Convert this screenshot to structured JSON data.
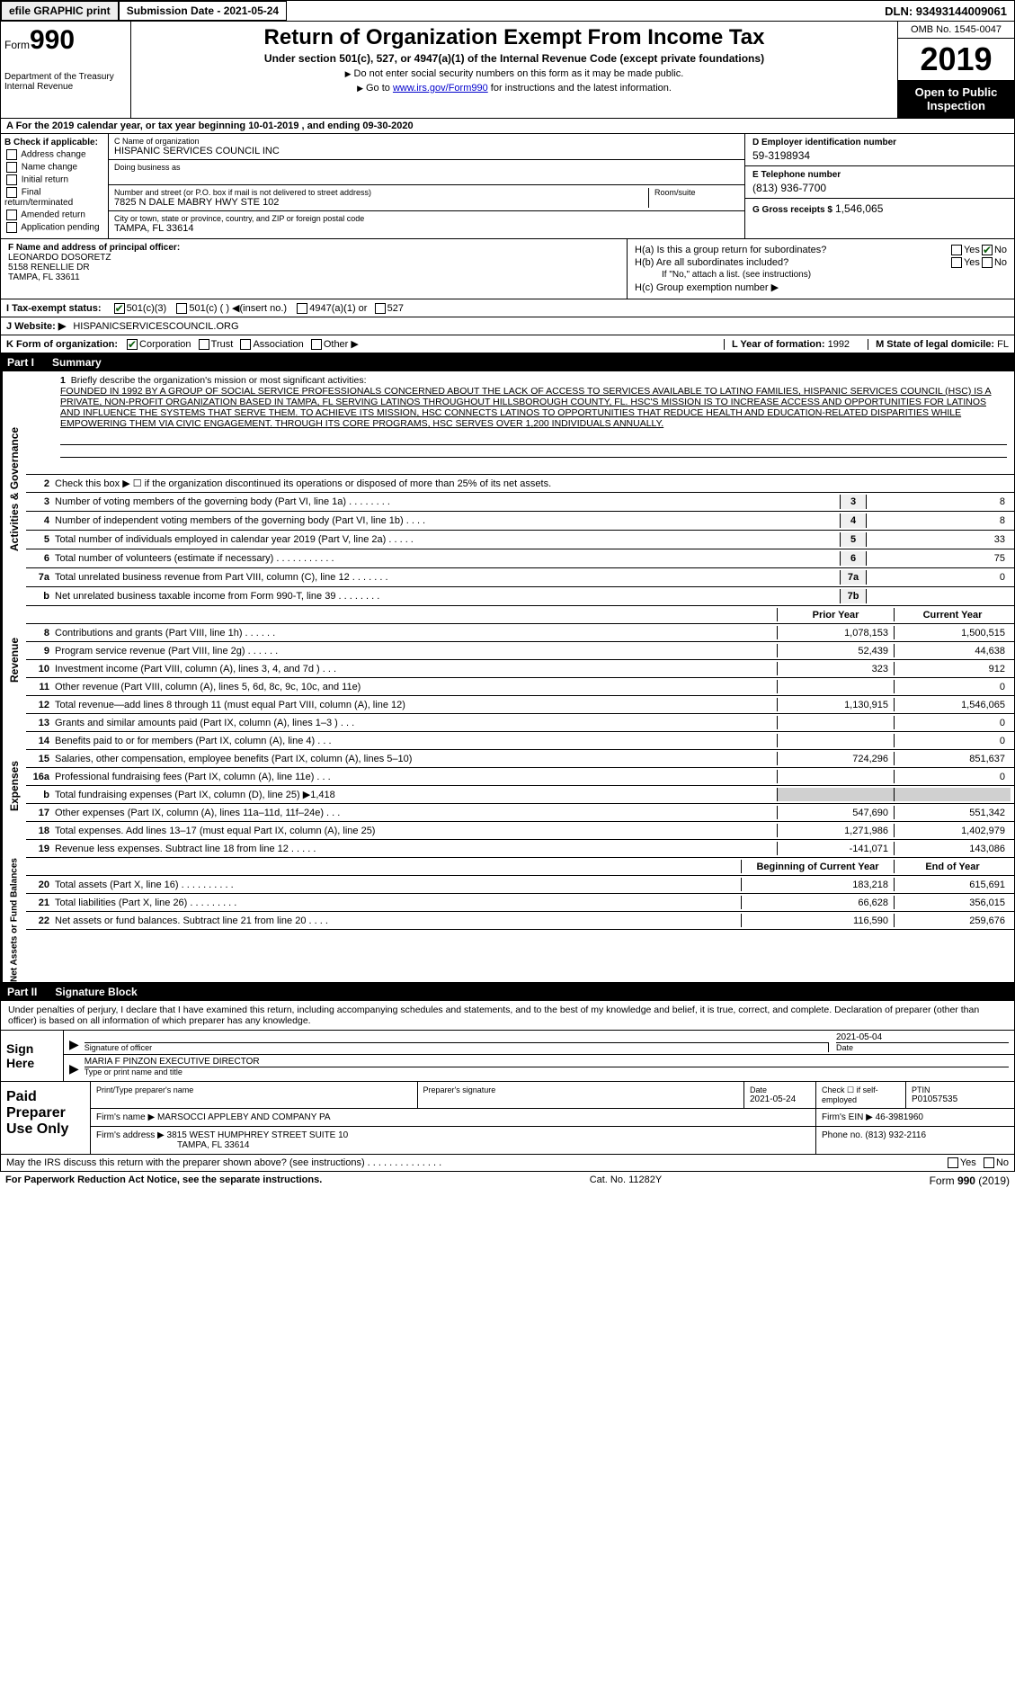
{
  "topbar": {
    "efile": "efile GRAPHIC print",
    "submission": "Submission Date - 2021-05-24",
    "dln": "DLN: 93493144009061"
  },
  "header": {
    "form_word": "Form",
    "form_num": "990",
    "dept": "Department of the Treasury\nInternal Revenue",
    "title": "Return of Organization Exempt From Income Tax",
    "sub1": "Under section 501(c), 527, or 4947(a)(1) of the Internal Revenue Code (except private foundations)",
    "sub2a": "Do not enter social security numbers on this form as it may be made public.",
    "sub2b_pre": "Go to ",
    "sub2b_link": "www.irs.gov/Form990",
    "sub2b_post": " for instructions and the latest information.",
    "omb": "OMB No. 1545-0047",
    "year": "2019",
    "openpub": "Open to Public Inspection"
  },
  "row_a": "A  For the 2019 calendar year, or tax year beginning 10-01-2019    , and ending 09-30-2020",
  "col_b": {
    "hdr": "B Check if applicable:",
    "items": [
      "Address change",
      "Name change",
      "Initial return",
      "Final return/terminated",
      "Amended return",
      "Application pending"
    ]
  },
  "col_c": {
    "name_lbl": "C Name of organization",
    "name": "HISPANIC SERVICES COUNCIL INC",
    "dba_lbl": "Doing business as",
    "dba": "",
    "street_lbl": "Number and street (or P.O. box if mail is not delivered to street address)",
    "street": "7825 N DALE MABRY HWY STE 102",
    "room_lbl": "Room/suite",
    "city_lbl": "City or town, state or province, country, and ZIP or foreign postal code",
    "city": "TAMPA, FL  33614"
  },
  "col_d": {
    "ein_lbl": "D Employer identification number",
    "ein": "59-3198934",
    "tel_lbl": "E Telephone number",
    "tel": "(813) 936-7700",
    "gross_lbl": "G Gross receipts $",
    "gross": "1,546,065"
  },
  "f": {
    "lbl": "F  Name and address of principal officer:",
    "name": "LEONARDO DOSORETZ",
    "addr1": "5158 RENELLIE DR",
    "addr2": "TAMPA, FL  33611"
  },
  "h": {
    "a": "H(a)  Is this a group return for subordinates?",
    "b": "H(b)  Are all subordinates included?",
    "b_note": "If \"No,\" attach a list. (see instructions)",
    "c": "H(c)  Group exemption number ▶"
  },
  "i": {
    "lbl": "I    Tax-exempt status:",
    "opts": [
      "501(c)(3)",
      "501(c) (   ) ◀(insert no.)",
      "4947(a)(1) or",
      "527"
    ]
  },
  "j": {
    "lbl": "J   Website: ▶",
    "val": "HISPANICSERVICESCOUNCIL.ORG"
  },
  "k": {
    "lbl": "K Form of organization:",
    "opts": [
      "Corporation",
      "Trust",
      "Association",
      "Other ▶"
    ],
    "l_lbl": "L Year of formation:",
    "l_val": "1992",
    "m_lbl": "M State of legal domicile:",
    "m_val": "FL"
  },
  "part1": {
    "num": "Part I",
    "title": "Summary"
  },
  "mission": {
    "num": "1",
    "lbl": "Briefly describe the organization's mission or most significant activities:",
    "txt": "FOUNDED IN 1992 BY A GROUP OF SOCIAL SERVICE PROFESSIONALS CONCERNED ABOUT THE LACK OF ACCESS TO SERVICES AVAILABLE TO LATINO FAMILIES, HISPANIC SERVICES COUNCIL (HSC) IS A PRIVATE, NON-PROFIT ORGANIZATION BASED IN TAMPA, FL SERVING LATINOS THROUGHOUT HILLSBOROUGH COUNTY, FL. HSC'S MISSION IS TO INCREASE ACCESS AND OPPORTUNITIES FOR LATINOS AND INFLUENCE THE SYSTEMS THAT SERVE THEM. TO ACHIEVE ITS MISSION, HSC CONNECTS LATINOS TO OPPORTUNITIES THAT REDUCE HEALTH AND EDUCATION-RELATED DISPARITIES WHILE EMPOWERING THEM VIA CIVIC ENGAGEMENT. THROUGH ITS CORE PROGRAMS, HSC SERVES OVER 1,200 INDIVIDUALS ANNUALLY."
  },
  "sidebars": {
    "s1": "Activities & Governance",
    "s2": "Revenue",
    "s3": "Expenses",
    "s4": "Net Assets or Fund Balances"
  },
  "lines_gov": [
    {
      "n": "2",
      "d": "Check this box ▶ ☐ if the organization discontinued its operations or disposed of more than 25% of its net assets."
    },
    {
      "n": "3",
      "d": "Number of voting members of the governing body (Part VI, line 1a)   .    .    .    .    .    .    .    .",
      "box": "3",
      "v": "8"
    },
    {
      "n": "4",
      "d": "Number of independent voting members of the governing body (Part VI, line 1b)    .    .    .    .",
      "box": "4",
      "v": "8"
    },
    {
      "n": "5",
      "d": "Total number of individuals employed in calendar year 2019 (Part V, line 2a)   .    .    .    .    .",
      "box": "5",
      "v": "33"
    },
    {
      "n": "6",
      "d": "Total number of volunteers (estimate if necessary)    .    .    .    .    .    .    .    .    .    .    .",
      "box": "6",
      "v": "75"
    },
    {
      "n": "7a",
      "d": "Total unrelated business revenue from Part VIII, column (C), line 12    .    .    .    .    .    .    .",
      "box": "7a",
      "v": "0"
    },
    {
      "n": "b",
      "d": "Net unrelated business taxable income from Form 990-T, line 39    .    .    .    .    .    .    .    .",
      "box": "7b",
      "v": ""
    }
  ],
  "col_hdrs": {
    "py": "Prior Year",
    "cy": "Current Year"
  },
  "lines_rev": [
    {
      "n": "8",
      "d": "Contributions and grants (Part VIII, line 1h)    .    .    .    .    .    .",
      "v1": "1,078,153",
      "v2": "1,500,515"
    },
    {
      "n": "9",
      "d": "Program service revenue (Part VIII, line 2g)    .    .    .    .    .    .",
      "v1": "52,439",
      "v2": "44,638"
    },
    {
      "n": "10",
      "d": "Investment income (Part VIII, column (A), lines 3, 4, and 7d )    .    .    .",
      "v1": "323",
      "v2": "912"
    },
    {
      "n": "11",
      "d": "Other revenue (Part VIII, column (A), lines 5, 6d, 8c, 9c, 10c, and 11e)",
      "v1": "",
      "v2": "0"
    },
    {
      "n": "12",
      "d": "Total revenue—add lines 8 through 11 (must equal Part VIII, column (A), line 12)",
      "v1": "1,130,915",
      "v2": "1,546,065"
    }
  ],
  "lines_exp": [
    {
      "n": "13",
      "d": "Grants and similar amounts paid (Part IX, column (A), lines 1–3 )    .    .    .",
      "v1": "",
      "v2": "0"
    },
    {
      "n": "14",
      "d": "Benefits paid to or for members (Part IX, column (A), line 4)    .    .    .",
      "v1": "",
      "v2": "0"
    },
    {
      "n": "15",
      "d": "Salaries, other compensation, employee benefits (Part IX, column (A), lines 5–10)",
      "v1": "724,296",
      "v2": "851,637"
    },
    {
      "n": "16a",
      "d": "Professional fundraising fees (Part IX, column (A), line 11e)    .    .    .",
      "v1": "",
      "v2": "0"
    },
    {
      "n": "b",
      "d": "Total fundraising expenses (Part IX, column (D), line 25) ▶1,418",
      "v1": "gray",
      "v2": "gray"
    },
    {
      "n": "17",
      "d": "Other expenses (Part IX, column (A), lines 11a–11d, 11f–24e)    .    .    .",
      "v1": "547,690",
      "v2": "551,342"
    },
    {
      "n": "18",
      "d": "Total expenses. Add lines 13–17 (must equal Part IX, column (A), line 25)",
      "v1": "1,271,986",
      "v2": "1,402,979"
    },
    {
      "n": "19",
      "d": "Revenue less expenses. Subtract line 18 from line 12    .    .    .    .    .",
      "v1": "-141,071",
      "v2": "143,086"
    }
  ],
  "col_hdrs2": {
    "py": "Beginning of Current Year",
    "cy": "End of Year"
  },
  "lines_net": [
    {
      "n": "20",
      "d": "Total assets (Part X, line 16)    .    .    .    .    .    .    .    .    .    .",
      "v1": "183,218",
      "v2": "615,691"
    },
    {
      "n": "21",
      "d": "Total liabilities (Part X, line 26)    .    .    .    .    .    .    .    .    .",
      "v1": "66,628",
      "v2": "356,015"
    },
    {
      "n": "22",
      "d": "Net assets or fund balances. Subtract line 21 from line 20    .    .    .    .",
      "v1": "116,590",
      "v2": "259,676"
    }
  ],
  "part2": {
    "num": "Part II",
    "title": "Signature Block"
  },
  "sig": {
    "intro": "Under penalties of perjury, I declare that I have examined this return, including accompanying schedules and statements, and to the best of my knowledge and belief, it is true, correct, and complete. Declaration of preparer (other than officer) is based on all information of which preparer has any knowledge.",
    "here": "Sign Here",
    "sig_lbl": "Signature of officer",
    "date": "2021-05-04",
    "date_lbl": "Date",
    "name": "MARIA F PINZON  EXECUTIVE DIRECTOR",
    "name_lbl": "Type or print name and title"
  },
  "prep": {
    "title": "Paid Preparer Use Only",
    "h1": "Print/Type preparer's name",
    "h2": "Preparer's signature",
    "h3": "Date",
    "h3v": "2021-05-24",
    "h4": "Check ☐ if self-employed",
    "h5": "PTIN",
    "h5v": "P01057535",
    "firm_lbl": "Firm's name      ▶",
    "firm": "MARSOCCI APPLEBY AND COMPANY PA",
    "ein_lbl": "Firm's EIN ▶",
    "ein": "46-3981960",
    "addr_lbl": "Firm's address ▶",
    "addr1": "3815 WEST HUMPHREY STREET SUITE 10",
    "addr2": "TAMPA, FL  33614",
    "phone_lbl": "Phone no.",
    "phone": "(813) 932-2116"
  },
  "footer": {
    "discuss": "May the IRS discuss this return with the preparer shown above? (see instructions)    .    .    .    .    .    .    .    .    .    .    .    .    .    .",
    "pra": "For Paperwork Reduction Act Notice, see the separate instructions.",
    "cat": "Cat. No. 11282Y",
    "form": "Form 990 (2019)"
  },
  "yn": {
    "yes": "Yes",
    "no": "No"
  }
}
